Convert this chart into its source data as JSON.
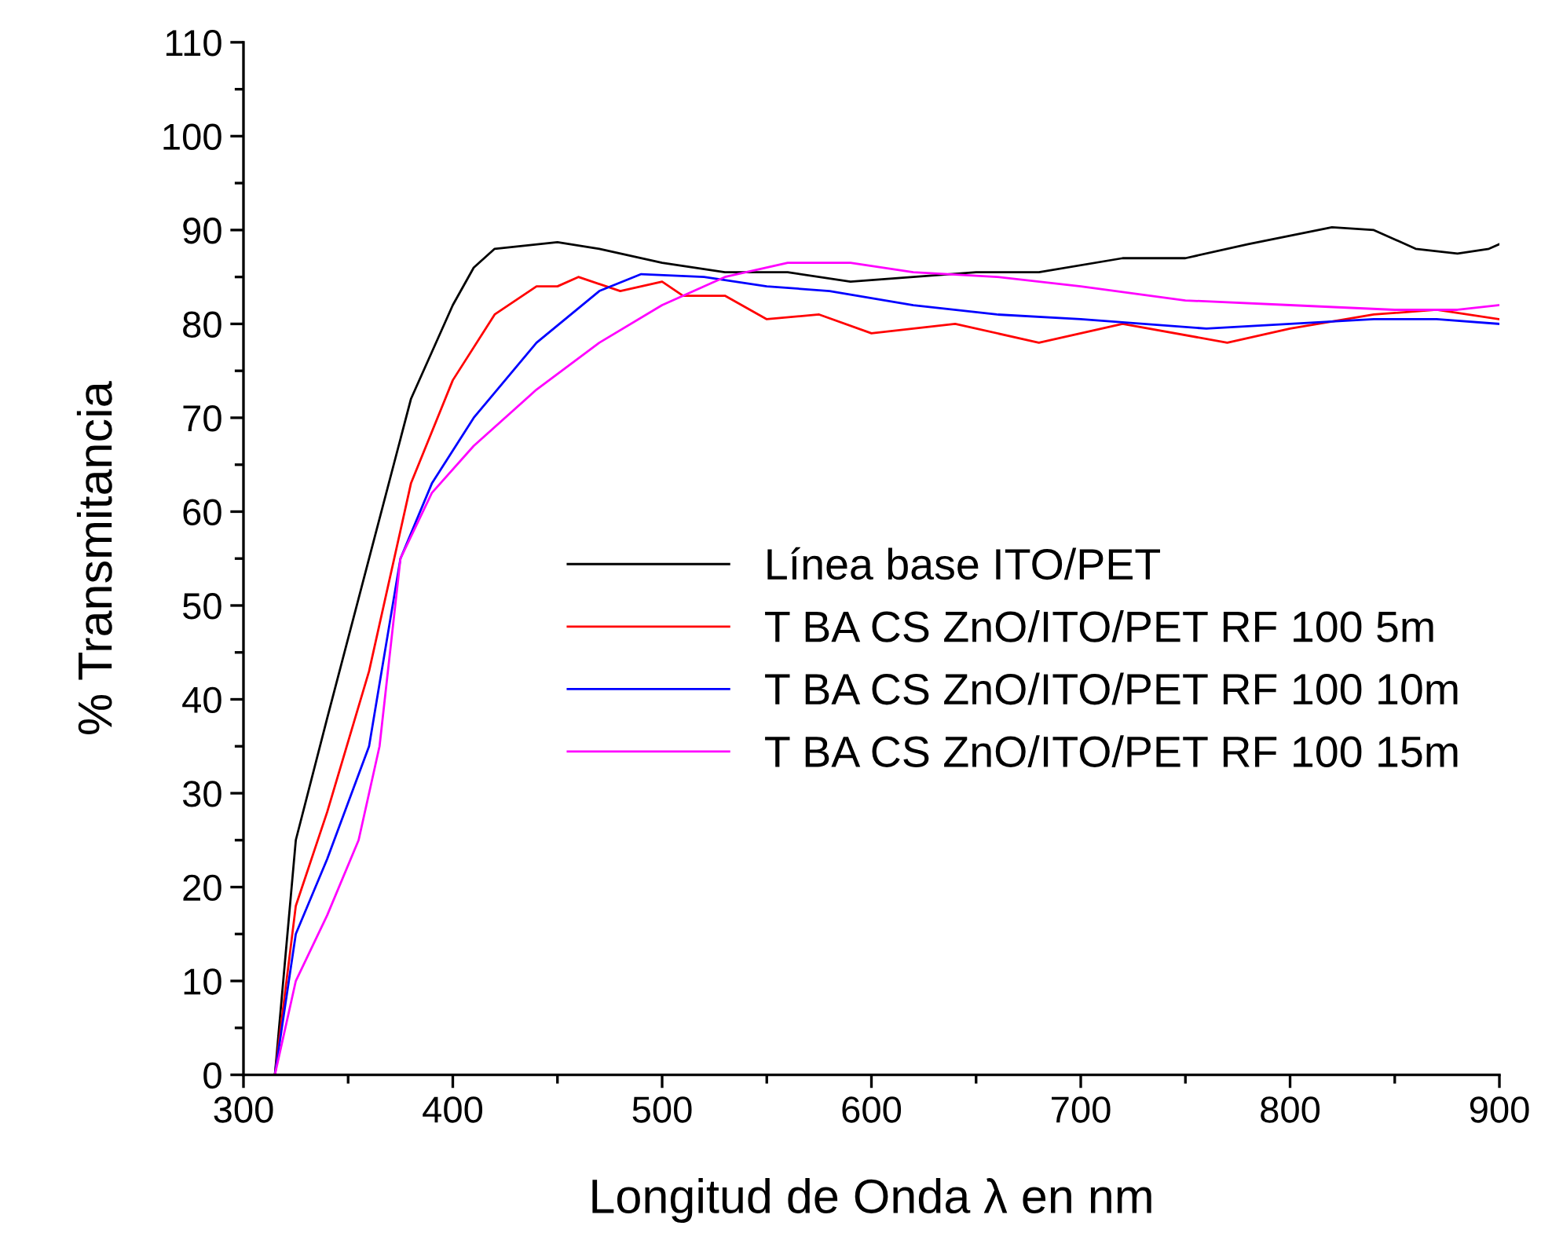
{
  "chart_data": {
    "type": "line",
    "xlabel": "Longitud de Onda λ en nm",
    "ylabel": "% Transmitancia",
    "xlim": [
      300,
      900
    ],
    "ylim": [
      0,
      110
    ],
    "xticks": [
      300,
      400,
      500,
      600,
      700,
      800,
      900
    ],
    "yticks": [
      0,
      10,
      20,
      30,
      40,
      50,
      60,
      70,
      80,
      90,
      100,
      110
    ],
    "grid": false,
    "legend": "center right",
    "marker": "none",
    "line_style": "solid",
    "series": [
      {
        "name": "Línea base ITO/PET",
        "color": "#000000",
        "x": [
          315,
          325,
          340,
          360,
          380,
          400,
          410,
          420,
          450,
          470,
          500,
          530,
          560,
          590,
          620,
          650,
          680,
          720,
          750,
          780,
          820,
          840,
          860,
          880,
          895,
          900
        ],
        "values": [
          0,
          25,
          38,
          55,
          72,
          82,
          86,
          88,
          88.7,
          88,
          86.5,
          85.5,
          85.5,
          84.5,
          85,
          85.5,
          85.5,
          87,
          87,
          88.5,
          90.3,
          90,
          88,
          87.5,
          88,
          88.5
        ]
      },
      {
        "name": "T BA CS ZnO/ITO/PET RF 100 5m",
        "color": "#ff0000",
        "x": [
          315,
          325,
          340,
          360,
          380,
          400,
          420,
          440,
          450,
          460,
          480,
          500,
          510,
          530,
          550,
          575,
          600,
          640,
          680,
          720,
          770,
          800,
          840,
          870,
          900
        ],
        "values": [
          0,
          18,
          28,
          43,
          63,
          74,
          81,
          84,
          84,
          85,
          83.5,
          84.5,
          83,
          83,
          80.5,
          81,
          79,
          80,
          78,
          80,
          78,
          79.5,
          81,
          81.5,
          80.5
        ]
      },
      {
        "name": "T BA CS ZnO/ITO/PET RF 100 10m",
        "color": "#0000ff",
        "x": [
          315,
          325,
          340,
          360,
          375,
          390,
          410,
          440,
          470,
          490,
          520,
          550,
          580,
          620,
          660,
          700,
          760,
          800,
          840,
          870,
          900
        ],
        "values": [
          0,
          15,
          23,
          35,
          55,
          63,
          70,
          78,
          83.5,
          85.3,
          85,
          84,
          83.5,
          82,
          81,
          80.5,
          79.5,
          80,
          80.5,
          80.5,
          80
        ]
      },
      {
        "name": "T BA CS ZnO/ITO/PET RF 100 15m",
        "color": "#ff00ff",
        "x": [
          315,
          325,
          340,
          355,
          365,
          375,
          390,
          410,
          440,
          470,
          500,
          530,
          560,
          590,
          620,
          660,
          700,
          750,
          800,
          850,
          880,
          900
        ],
        "values": [
          0,
          10,
          17,
          25,
          35,
          55,
          62,
          67,
          73,
          78,
          82,
          85,
          86.5,
          86.5,
          85.5,
          85,
          84,
          82.5,
          82,
          81.5,
          81.5,
          82
        ]
      }
    ]
  }
}
